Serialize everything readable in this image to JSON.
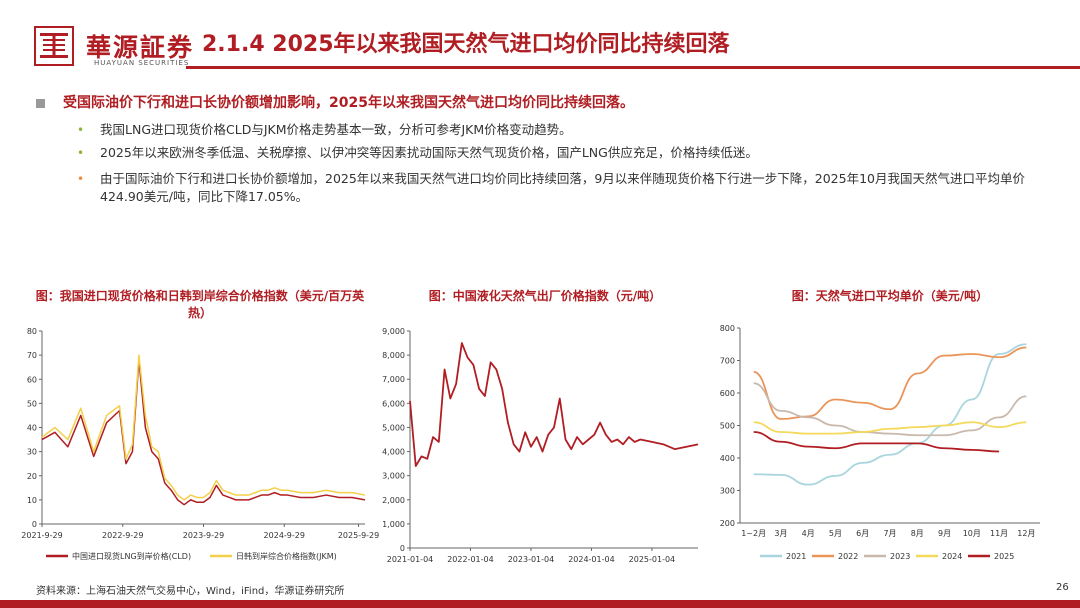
{
  "header": {
    "logo_cn": "華源証券",
    "logo_en": "HUAYUAN SECURITIES",
    "title": "2.1.4 2025年以来我国天然气进口均价同比持续回落",
    "brand_color": "#b01e23"
  },
  "bullets": {
    "main": "受国际油价下行和进口长协价额增加影响，2025年以来我国天然气进口均价同比持续回落。",
    "subs": [
      {
        "dot": "•",
        "text": "我国LNG进口现货价格CLD与JKM价格走势基本一致，分析可参考JKM价格变动趋势。",
        "color": "#8cb43c"
      },
      {
        "dot": "•",
        "text": "2025年以来欧洲冬季低温、关税摩擦、以伊冲突等因素扰动国际天然气现货价格，国产LNG供应充足，价格持续低迷。",
        "color": "#8cb43c"
      },
      {
        "dot": "•",
        "text": "由于国际油价下行和进口长协价额增加，2025年以来我国天然气进口均价同比持续回落，9月以来伴随现货价格下行进一步下降，2025年10月我国天然气进口平均单价424.90美元/吨，同比下降17.05%。",
        "color": "#f08c3c"
      }
    ]
  },
  "chart_titles": {
    "c1": "图：我国进口现货价格和日韩到岸综合价格指数（美元/百万英热）",
    "c2": "图：中国液化天然气出厂价格指数（元/吨）",
    "c3": "图：天然气进口平均单价（美元/吨）"
  },
  "chart_data": [
    {
      "type": "line",
      "title": "图：我国进口现货价格和日韩到岸综合价格指数（美元/百万英热）",
      "ylim": [
        0,
        80
      ],
      "yticks": [
        "0",
        "10",
        "20",
        "30",
        "40",
        "50",
        "60",
        "70",
        "80"
      ],
      "xticks": [
        "2021-9-29",
        "2022-9-29",
        "2023-9-29",
        "2024-9-29",
        "2025-9-29"
      ],
      "x": [
        0,
        0.04,
        0.08,
        0.12,
        0.16,
        0.2,
        0.24,
        0.26,
        0.28,
        0.3,
        0.32,
        0.34,
        0.36,
        0.38,
        0.4,
        0.42,
        0.44,
        0.46,
        0.48,
        0.5,
        0.52,
        0.54,
        0.56,
        0.58,
        0.6,
        0.62,
        0.64,
        0.66,
        0.68,
        0.7,
        0.72,
        0.74,
        0.76,
        0.8,
        0.84,
        0.88,
        0.92,
        0.96,
        1.0
      ],
      "series": [
        {
          "name": "中国进口现货LNG到岸价格(CLD)",
          "color": "#b01e23",
          "values": [
            35,
            38,
            32,
            45,
            28,
            42,
            47,
            25,
            30,
            68,
            40,
            30,
            27,
            17,
            14,
            10,
            8,
            10,
            9,
            9,
            11,
            16,
            12,
            11,
            10,
            10,
            10,
            11,
            12,
            12,
            13,
            12,
            12,
            11,
            11,
            12,
            11,
            11,
            10
          ]
        },
        {
          "name": "日韩到岸综合价格指数(JKM)",
          "color": "#f2d04a",
          "values": [
            36,
            40,
            35,
            48,
            30,
            45,
            49,
            27,
            33,
            70,
            45,
            32,
            30,
            19,
            16,
            12,
            10,
            12,
            11,
            11,
            13,
            18,
            14,
            13,
            12,
            12,
            12,
            13,
            14,
            14,
            15,
            14,
            14,
            13,
            13,
            14,
            13,
            13,
            12
          ]
        }
      ]
    },
    {
      "type": "line",
      "title": "图：中国液化天然气出厂价格指数（元/吨）",
      "ylim": [
        0,
        9000
      ],
      "yticks": [
        "0",
        "1,000",
        "2,000",
        "3,000",
        "4,000",
        "5,000",
        "6,000",
        "7,000",
        "8,000",
        "9,000"
      ],
      "xticks": [
        "2021-01-04",
        "2022-01-04",
        "2023-01-04",
        "2024-01-04",
        "2025-01-04"
      ],
      "x": [
        0,
        0.02,
        0.04,
        0.06,
        0.08,
        0.1,
        0.12,
        0.14,
        0.16,
        0.18,
        0.2,
        0.22,
        0.24,
        0.26,
        0.28,
        0.3,
        0.32,
        0.34,
        0.36,
        0.38,
        0.4,
        0.42,
        0.44,
        0.46,
        0.48,
        0.5,
        0.52,
        0.54,
        0.56,
        0.58,
        0.6,
        0.62,
        0.64,
        0.66,
        0.68,
        0.7,
        0.72,
        0.74,
        0.76,
        0.78,
        0.8,
        0.84,
        0.88,
        0.92,
        0.96,
        1.0
      ],
      "series": [
        {
          "name": "中国液化天然气出厂价格指数",
          "color": "#b01e23",
          "values": [
            6100,
            3400,
            3800,
            3700,
            4600,
            4400,
            7400,
            6200,
            6800,
            8500,
            7900,
            7600,
            6600,
            6300,
            7700,
            7400,
            6600,
            5200,
            4300,
            4000,
            4800,
            4200,
            4600,
            4000,
            4700,
            5000,
            6200,
            4500,
            4100,
            4600,
            4300,
            4500,
            4700,
            5200,
            4700,
            4400,
            4500,
            4300,
            4600,
            4400,
            4500,
            4400,
            4300,
            4100,
            4200,
            4300
          ]
        }
      ]
    },
    {
      "type": "line",
      "title": "图：天然气进口平均单价（美元/吨）",
      "ylim": [
        200,
        800
      ],
      "yticks": [
        "200",
        "300",
        "400",
        "500",
        "600",
        "700",
        "800"
      ],
      "categories": [
        "1~2月",
        "3月",
        "4月",
        "5月",
        "6月",
        "7月",
        "8月",
        "9月",
        "10月",
        "11月",
        "12月"
      ],
      "series": [
        {
          "name": "2021",
          "color": "#a9d5de",
          "values": [
            350,
            348,
            318,
            345,
            385,
            410,
            445,
            500,
            580,
            720,
            750
          ]
        },
        {
          "name": "2022",
          "color": "#e9955a",
          "values": [
            665,
            520,
            528,
            580,
            570,
            550,
            660,
            715,
            720,
            710,
            740
          ]
        },
        {
          "name": "2023",
          "color": "#c9b9ad",
          "values": [
            630,
            545,
            525,
            500,
            480,
            475,
            470,
            470,
            485,
            525,
            590
          ]
        },
        {
          "name": "2024",
          "color": "#f4d95c",
          "values": [
            510,
            480,
            475,
            475,
            480,
            490,
            495,
            500,
            510,
            495,
            510
          ]
        },
        {
          "name": "2025",
          "color": "#b01e23",
          "values": [
            480,
            450,
            435,
            430,
            445,
            445,
            445,
            430,
            425,
            420,
            null
          ]
        }
      ]
    }
  ],
  "footer": {
    "source": "资料来源：上海石油天然气交易中心，Wind，iFind，华源证券研究所",
    "page_number": "26"
  }
}
